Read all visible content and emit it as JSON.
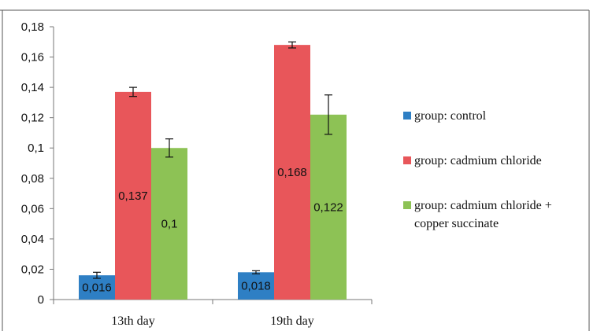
{
  "chart_data": {
    "type": "bar",
    "title": "",
    "xlabel": "",
    "ylabel": "",
    "categories": [
      "13th day",
      "19th day"
    ],
    "ylim": [
      0,
      0.18
    ],
    "yticks": [
      0,
      0.02,
      0.04,
      0.06,
      0.08,
      0.1,
      0.12,
      0.14,
      0.16,
      0.18
    ],
    "ytick_labels": [
      "0",
      "0,02",
      "0,04",
      "0,06",
      "0,08",
      "0,1",
      "0,12",
      "0,14",
      "0,16",
      "0,18"
    ],
    "grid": false,
    "legend_position": "right",
    "series": [
      {
        "name": "group: control",
        "color": "#2e7fc4",
        "values": [
          0.016,
          0.018
        ],
        "errors": [
          0.002,
          0.001
        ],
        "labels": [
          "0,016",
          "0,018"
        ]
      },
      {
        "name": "group: cadmium chloride",
        "color": "#e8565a",
        "values": [
          0.137,
          0.168
        ],
        "errors": [
          0.003,
          0.002
        ],
        "labels": [
          "0,137",
          "0,168"
        ]
      },
      {
        "name": "group: cadmium chloride + copper succinate",
        "legend_lines": [
          "group: cadmium chloride +",
          "copper succinate"
        ],
        "color": "#8dc255",
        "values": [
          0.1,
          0.122
        ],
        "errors": [
          0.006,
          0.013
        ],
        "labels": [
          "0,1",
          "0,122"
        ]
      }
    ]
  }
}
